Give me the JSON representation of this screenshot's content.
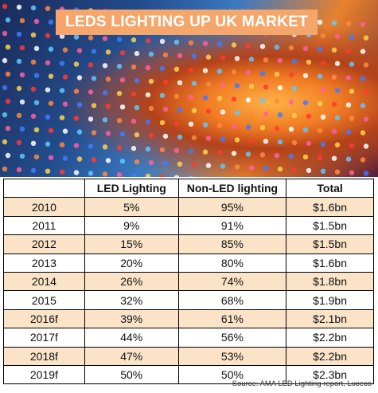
{
  "chart_data": {
    "type": "table",
    "title": "LEDS LIGHTING UP UK MARKET",
    "columns": [
      "",
      "LED Lighting",
      "Non-LED lighting",
      "Total"
    ],
    "rows": [
      [
        "2010",
        "5%",
        "95%",
        "$1.6bn"
      ],
      [
        "2011",
        "9%",
        "91%",
        "$1.5bn"
      ],
      [
        "2012",
        "15%",
        "85%",
        "$1.5bn"
      ],
      [
        "2013",
        "20%",
        "80%",
        "$1.6bn"
      ],
      [
        "2014",
        "26%",
        "74%",
        "$1.8bn"
      ],
      [
        "2015",
        "32%",
        "68%",
        "$1.9bn"
      ],
      [
        "2016f",
        "39%",
        "61%",
        "$2.1bn"
      ],
      [
        "2017f",
        "44%",
        "56%",
        "$2.2bn"
      ],
      [
        "2018f",
        "47%",
        "53%",
        "$2.2bn"
      ],
      [
        "2019f",
        "50%",
        "50%",
        "$2.3bn"
      ]
    ],
    "source": "Source: AMA LED Lighting report, Luceco"
  },
  "colors": {
    "banner": "#f4a66b",
    "row_highlight": "#fbe3c8"
  }
}
